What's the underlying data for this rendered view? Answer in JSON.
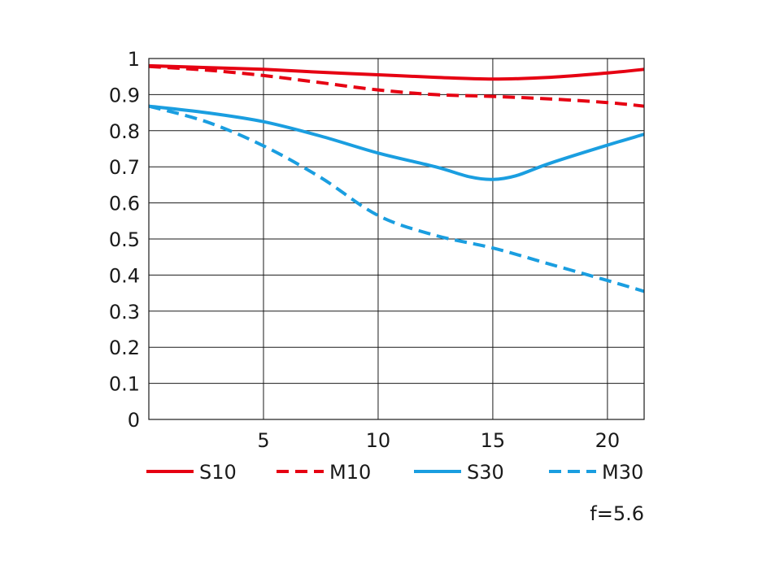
{
  "chart_data": {
    "type": "line",
    "title": "",
    "xlabel": "",
    "ylabel": "",
    "xlim": [
      0,
      21.6
    ],
    "ylim": [
      0,
      1
    ],
    "x_ticks": [
      5,
      10,
      15,
      20
    ],
    "x_tick_labels": [
      "5",
      "10",
      "15",
      "20"
    ],
    "y_ticks": [
      0,
      0.1,
      0.2,
      0.3,
      0.4,
      0.5,
      0.6,
      0.7,
      0.8,
      0.9,
      1
    ],
    "y_tick_labels": [
      "0",
      "0.1",
      "0.2",
      "0.3",
      "0.4",
      "0.5",
      "0.6",
      "0.7",
      "0.8",
      "0.9",
      "1"
    ],
    "grid": true,
    "legend_position": "bottom",
    "annotation": "f=5.6",
    "series": [
      {
        "name": "S10",
        "color": "#e60012",
        "dash": "solid",
        "x": [
          0,
          2.5,
          5,
          7.5,
          10,
          12.5,
          15,
          17.5,
          20,
          21.6
        ],
        "y": [
          0.98,
          0.975,
          0.97,
          0.962,
          0.955,
          0.948,
          0.943,
          0.948,
          0.96,
          0.97
        ]
      },
      {
        "name": "M10",
        "color": "#e60012",
        "dash": "dashed",
        "x": [
          0,
          2.5,
          5,
          7.5,
          10,
          12.5,
          15,
          17.5,
          20,
          21.6
        ],
        "y": [
          0.978,
          0.968,
          0.953,
          0.933,
          0.913,
          0.9,
          0.895,
          0.888,
          0.878,
          0.868
        ]
      },
      {
        "name": "S30",
        "color": "#1a9ee0",
        "dash": "solid",
        "x": [
          0,
          2.5,
          5,
          7.5,
          10,
          12.5,
          14,
          15,
          16,
          17.5,
          20,
          21.6
        ],
        "y": [
          0.868,
          0.85,
          0.825,
          0.785,
          0.738,
          0.7,
          0.672,
          0.665,
          0.675,
          0.71,
          0.76,
          0.79
        ]
      },
      {
        "name": "M30",
        "color": "#1a9ee0",
        "dash": "dashed",
        "x": [
          0,
          2.5,
          5,
          7.5,
          10,
          12.5,
          15,
          17.5,
          20,
          21.6
        ],
        "y": [
          0.868,
          0.825,
          0.758,
          0.67,
          0.565,
          0.51,
          0.475,
          0.43,
          0.385,
          0.355
        ]
      }
    ]
  }
}
